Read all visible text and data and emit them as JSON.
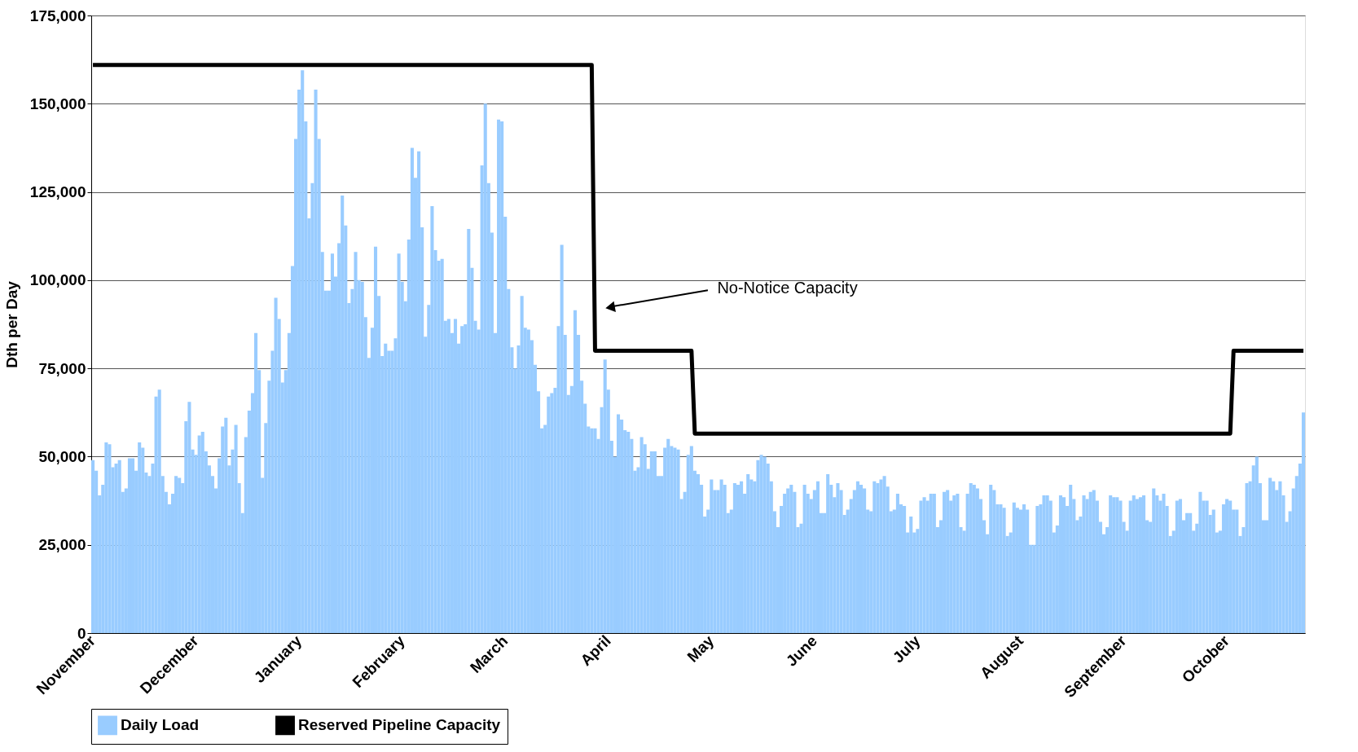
{
  "chart_data": {
    "type": "bar",
    "ylabel": "Dth per Day",
    "categories": [
      "November",
      null,
      null,
      null,
      null,
      null,
      null,
      null,
      null,
      null,
      null,
      null,
      null,
      null,
      null,
      null,
      null,
      null,
      null,
      null,
      null,
      null,
      null,
      null,
      null,
      null,
      null,
      null,
      null,
      null,
      null,
      "December",
      null,
      null,
      null,
      null,
      null,
      null,
      null,
      null,
      null,
      null,
      null,
      null,
      null,
      null,
      null,
      null,
      null,
      null,
      null,
      null,
      null,
      null,
      null,
      null,
      null,
      null,
      null,
      null,
      null,
      null,
      "January",
      null,
      null,
      null,
      null,
      null,
      null,
      null,
      null,
      null,
      null,
      null,
      null,
      null,
      null,
      null,
      null,
      null,
      null,
      null,
      null,
      null,
      null,
      null,
      null,
      null,
      null,
      null,
      null,
      null,
      null,
      "February",
      null,
      null,
      null,
      null,
      null,
      null,
      null,
      null,
      null,
      null,
      null,
      null,
      null,
      null,
      null,
      null,
      null,
      null,
      null,
      null,
      null,
      null,
      null,
      null,
      null,
      null,
      null,
      null,
      null,
      null,
      "March",
      null,
      null,
      null,
      null,
      null,
      null,
      null,
      null,
      null,
      null,
      null,
      null,
      null,
      null,
      null,
      null,
      null,
      null,
      null,
      null,
      null,
      null,
      null,
      null,
      null,
      null,
      null,
      null,
      null,
      null,
      "April",
      null,
      null,
      null,
      null,
      null,
      null,
      null,
      null,
      null,
      null,
      null,
      null,
      null,
      null,
      null,
      null,
      null,
      null,
      null,
      null,
      null,
      null,
      null,
      null,
      null,
      null,
      null,
      null,
      null,
      null,
      "May",
      null,
      null,
      null,
      null,
      null,
      null,
      null,
      null,
      null,
      null,
      null,
      null,
      null,
      null,
      null,
      null,
      null,
      null,
      null,
      null,
      null,
      null,
      null,
      null,
      null,
      null,
      null,
      null,
      null,
      null,
      "June",
      null,
      null,
      null,
      null,
      null,
      null,
      null,
      null,
      null,
      null,
      null,
      null,
      null,
      null,
      null,
      null,
      null,
      null,
      null,
      null,
      null,
      null,
      null,
      null,
      null,
      null,
      null,
      null,
      null,
      null,
      "July",
      null,
      null,
      null,
      null,
      null,
      null,
      null,
      null,
      null,
      null,
      null,
      null,
      null,
      null,
      null,
      null,
      null,
      null,
      null,
      null,
      null,
      null,
      null,
      null,
      null,
      null,
      null,
      null,
      null,
      null,
      "August",
      null,
      null,
      null,
      null,
      null,
      null,
      null,
      null,
      null,
      null,
      null,
      null,
      null,
      null,
      null,
      null,
      null,
      null,
      null,
      null,
      null,
      null,
      null,
      null,
      null,
      null,
      null,
      null,
      null,
      null,
      "September",
      null,
      null,
      null,
      null,
      null,
      null,
      null,
      null,
      null,
      null,
      null,
      null,
      null,
      null,
      null,
      null,
      null,
      null,
      null,
      null,
      null,
      null,
      null,
      null,
      null,
      null,
      null,
      null,
      null,
      null,
      "October",
      null,
      null,
      null,
      null,
      null,
      null,
      null,
      null,
      null,
      null,
      null,
      null,
      null,
      null,
      null,
      null,
      null,
      null,
      null,
      null,
      null,
      null,
      null
    ],
    "series": [
      {
        "name": "Daily Load",
        "color": "#99ccff",
        "values": [
          49000,
          46000,
          39000,
          42000,
          54000,
          53500,
          47000,
          48000,
          49000,
          40000,
          41000,
          49500,
          49500,
          46000,
          54000,
          52500,
          45500,
          44500,
          48000,
          67000,
          69000,
          44500,
          40000,
          36500,
          39500,
          44500,
          44000,
          42500,
          60000,
          65500,
          52000,
          50500,
          56000,
          57000,
          51500,
          47500,
          44500,
          41000,
          49500,
          58500,
          61000,
          47500,
          52000,
          59000,
          42500,
          34000,
          55500,
          63000,
          68000,
          85000,
          74500,
          44000,
          59500,
          71500,
          80000,
          95000,
          89000,
          71000,
          74500,
          85000,
          104000,
          140000,
          154000,
          159500,
          145000,
          117500,
          127500,
          154000,
          140000,
          108000,
          97000,
          97000,
          107500,
          101000,
          110500,
          124000,
          115500,
          93500,
          97500,
          108000,
          100000,
          99500,
          89500,
          78000,
          86500,
          109500,
          95500,
          78500,
          82000,
          80000,
          80000,
          83500,
          107500,
          99500,
          94000,
          111500,
          137500,
          129000,
          136500,
          115000,
          84000,
          93000,
          121000,
          108500,
          105500,
          106000,
          88500,
          89000,
          85000,
          89000,
          82000,
          87000,
          87500,
          114500,
          103500,
          88500,
          86000,
          132500,
          150000,
          127500,
          113500,
          85000,
          145500,
          145000,
          118000,
          97500,
          81000,
          75000,
          81500,
          95500,
          86500,
          86000,
          83000,
          76000,
          68500,
          58000,
          59000,
          67000,
          68000,
          69500,
          87000,
          110000,
          84500,
          67500,
          70000,
          91500,
          84500,
          71500,
          65000,
          58500,
          58000,
          58000,
          55000,
          64000,
          77500,
          69000,
          54500,
          50000,
          62000,
          60500,
          57500,
          57000,
          55000,
          46000,
          47000,
          55500,
          53500,
          46500,
          51500,
          51500,
          44500,
          44500,
          52500,
          55000,
          53000,
          52500,
          52000,
          38000,
          40000,
          50500,
          53000,
          46000,
          45000,
          42000,
          33000,
          35000,
          43500,
          40500,
          40500,
          43500,
          42000,
          34000,
          35000,
          42500,
          42000,
          43000,
          39500,
          45000,
          43500,
          43000,
          49000,
          50500,
          50000,
          48000,
          43000,
          34500,
          30000,
          36000,
          39500,
          41000,
          42000,
          40000,
          30000,
          31000,
          42000,
          39500,
          38000,
          40500,
          43000,
          34000,
          34000,
          45000,
          42000,
          38500,
          42500,
          40500,
          33500,
          35000,
          38000,
          40500,
          43000,
          42000,
          41000,
          35000,
          34500,
          43000,
          42500,
          43500,
          44500,
          41500,
          34500,
          35000,
          39500,
          36500,
          36000,
          28500,
          33000,
          28500,
          29500,
          37500,
          38500,
          37500,
          39500,
          39500,
          30000,
          32000,
          40000,
          40500,
          37500,
          39000,
          39500,
          30000,
          29000,
          39500,
          42500,
          42000,
          41000,
          38000,
          32000,
          28000,
          42000,
          40500,
          36500,
          36500,
          35500,
          27500,
          28500,
          37000,
          35500,
          35000,
          36500,
          35000,
          25000,
          25000,
          36000,
          36500,
          39000,
          39000,
          37500,
          28500,
          30500,
          39000,
          38500,
          36000,
          42000,
          38000,
          32000,
          33000,
          39000,
          38000,
          40000,
          40500,
          37500,
          31500,
          28000,
          30000,
          39000,
          38500,
          38500,
          37500,
          31500,
          29000,
          37500,
          39000,
          38000,
          38500,
          39000,
          32000,
          31500,
          41000,
          39000,
          37500,
          39500,
          36000,
          27500,
          29000,
          37500,
          38000,
          32000,
          34000,
          34000,
          29000,
          31000,
          40000,
          37500,
          37500,
          33500,
          35000,
          28500,
          29000,
          36500,
          38000,
          37500,
          35000,
          35000,
          27500,
          30000,
          42500,
          43000,
          47500,
          50000,
          42500,
          32000,
          32000,
          44000,
          43000,
          40500,
          43000,
          39000,
          31500,
          34500,
          41000,
          44500,
          48000,
          62500
        ]
      },
      {
        "name": "Reserved Pipeline Capacity",
        "type": "line",
        "color": "#000000",
        "values": [
          161000,
          161000,
          161000,
          161000,
          161000,
          161000,
          161000,
          161000,
          161000,
          161000,
          161000,
          161000,
          161000,
          161000,
          161000,
          161000,
          161000,
          161000,
          161000,
          161000,
          161000,
          161000,
          161000,
          161000,
          161000,
          161000,
          161000,
          161000,
          161000,
          161000,
          161000,
          161000,
          161000,
          161000,
          161000,
          161000,
          161000,
          161000,
          161000,
          161000,
          161000,
          161000,
          161000,
          161000,
          161000,
          161000,
          161000,
          161000,
          161000,
          161000,
          161000,
          161000,
          161000,
          161000,
          161000,
          161000,
          161000,
          161000,
          161000,
          161000,
          161000,
          161000,
          161000,
          161000,
          161000,
          161000,
          161000,
          161000,
          161000,
          161000,
          161000,
          161000,
          161000,
          161000,
          161000,
          161000,
          161000,
          161000,
          161000,
          161000,
          161000,
          161000,
          161000,
          161000,
          161000,
          161000,
          161000,
          161000,
          161000,
          161000,
          161000,
          161000,
          161000,
          161000,
          161000,
          161000,
          161000,
          161000,
          161000,
          161000,
          161000,
          161000,
          161000,
          161000,
          161000,
          161000,
          161000,
          161000,
          161000,
          161000,
          161000,
          161000,
          161000,
          161000,
          161000,
          161000,
          161000,
          161000,
          161000,
          161000,
          161000,
          161000,
          161000,
          161000,
          161000,
          161000,
          161000,
          161000,
          161000,
          161000,
          161000,
          161000,
          161000,
          161000,
          161000,
          161000,
          161000,
          161000,
          161000,
          161000,
          161000,
          161000,
          161000,
          161000,
          161000,
          161000,
          161000,
          161000,
          161000,
          161000,
          161000,
          80000,
          80000,
          80000,
          80000,
          80000,
          80000,
          80000,
          80000,
          80000,
          80000,
          80000,
          80000,
          80000,
          80000,
          80000,
          80000,
          80000,
          80000,
          80000,
          80000,
          80000,
          80000,
          80000,
          80000,
          80000,
          80000,
          80000,
          80000,
          80000,
          80000,
          56500,
          56500,
          56500,
          56500,
          56500,
          56500,
          56500,
          56500,
          56500,
          56500,
          56500,
          56500,
          56500,
          56500,
          56500,
          56500,
          56500,
          56500,
          56500,
          56500,
          56500,
          56500,
          56500,
          56500,
          56500,
          56500,
          56500,
          56500,
          56500,
          56500,
          56500,
          56500,
          56500,
          56500,
          56500,
          56500,
          56500,
          56500,
          56500,
          56500,
          56500,
          56500,
          56500,
          56500,
          56500,
          56500,
          56500,
          56500,
          56500,
          56500,
          56500,
          56500,
          56500,
          56500,
          56500,
          56500,
          56500,
          56500,
          56500,
          56500,
          56500,
          56500,
          56500,
          56500,
          56500,
          56500,
          56500,
          56500,
          56500,
          56500,
          56500,
          56500,
          56500,
          56500,
          56500,
          56500,
          56500,
          56500,
          56500,
          56500,
          56500,
          56500,
          56500,
          56500,
          56500,
          56500,
          56500,
          56500,
          56500,
          56500,
          56500,
          56500,
          56500,
          56500,
          56500,
          56500,
          56500,
          56500,
          56500,
          56500,
          56500,
          56500,
          56500,
          56500,
          56500,
          56500,
          56500,
          56500,
          56500,
          56500,
          56500,
          56500,
          56500,
          56500,
          56500,
          56500,
          56500,
          56500,
          56500,
          56500,
          56500,
          56500,
          56500,
          56500,
          56500,
          56500,
          56500,
          56500,
          56500,
          56500,
          56500,
          56500,
          56500,
          56500,
          56500,
          56500,
          56500,
          56500,
          56500,
          56500,
          56500,
          56500,
          56500,
          56500,
          56500,
          56500,
          56500,
          56500,
          56500,
          56500,
          56500,
          56500,
          56500,
          56500,
          56500,
          56500,
          56500,
          56500,
          56500,
          56500,
          56500,
          56500,
          80000,
          80000,
          80000,
          80000,
          80000,
          80000,
          80000,
          80000,
          80000,
          80000,
          80000,
          80000,
          80000,
          80000,
          80000,
          80000,
          80000,
          80000,
          80000,
          80000,
          80000,
          80000
        ]
      }
    ],
    "ylim": [
      0,
      175000
    ],
    "yticks": [
      {
        "value": 0,
        "label": "0"
      },
      {
        "value": 25000,
        "label": "25,000"
      },
      {
        "value": 50000,
        "label": "50,000"
      },
      {
        "value": 75000,
        "label": "75,000"
      },
      {
        "value": 100000,
        "label": "100,000"
      },
      {
        "value": 125000,
        "label": "125,000"
      },
      {
        "value": 150000,
        "label": "150,000"
      },
      {
        "value": 175000,
        "label": "175,000"
      }
    ],
    "grid": "y",
    "legend": "bottom",
    "annotations": [
      "No-Notice Capacity"
    ]
  }
}
